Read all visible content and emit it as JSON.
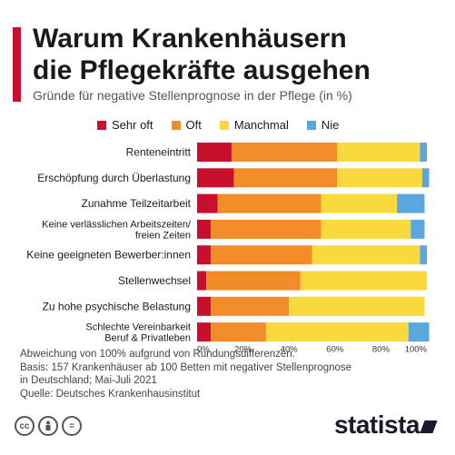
{
  "title_line1": "Warum Krankenhäusern",
  "title_line2": "die Pflegekräfte ausgehen",
  "subtitle": "Gründe für negative Stellenprognose in der Pflege (in %)",
  "notes": [
    "Abweichung von 100% aufgrund von Rundungsdifferenzen.",
    "Basis: 157 Krankenhäuser ab 100 Betten mit negativer Stellenprognose",
    "in Deutschland; Mai-Juli 2021",
    "Quelle: Deutsches Krankenhausinstitut"
  ],
  "brand": "statista",
  "icons": [
    "cc-icon",
    "person-icon",
    "equals-icon"
  ],
  "chart_data": {
    "type": "bar",
    "orientation": "horizontal",
    "stacked": true,
    "categories": [
      [
        "Renteneintritt"
      ],
      [
        "Erschöpfung durch Überlastung"
      ],
      [
        "Zunahme Teilzeitarbeit"
      ],
      [
        "Keine verlässlichen Arbeitszeiten/",
        "freien Zeiten"
      ],
      [
        "Keine geeigneten Bewerber:innen"
      ],
      [
        "Stellenwechsel"
      ],
      [
        "Zu hohe psychische Belastung"
      ],
      [
        "Schlechte Vereinbarkeit",
        "Beruf & Privatleben"
      ]
    ],
    "series": [
      {
        "name": "Sehr oft",
        "color": "#c8102e",
        "values": [
          15,
          16,
          9,
          6,
          6,
          4,
          6,
          6
        ]
      },
      {
        "name": "Oft",
        "color": "#f28c28",
        "values": [
          46,
          45,
          45,
          48,
          44,
          41,
          34,
          24
        ]
      },
      {
        "name": "Manchmal",
        "color": "#fad93c",
        "values": [
          36,
          37,
          33,
          39,
          47,
          55,
          59,
          62
        ]
      },
      {
        "name": "Nie",
        "color": "#5aa7e0",
        "values": [
          3,
          3,
          12,
          6,
          3,
          0,
          0,
          9
        ]
      }
    ],
    "xlim": [
      0,
      100
    ],
    "xticks": [
      "0%",
      "20%",
      "40%",
      "60%",
      "80%",
      "100%"
    ],
    "legend_position": "top",
    "grid": false
  }
}
